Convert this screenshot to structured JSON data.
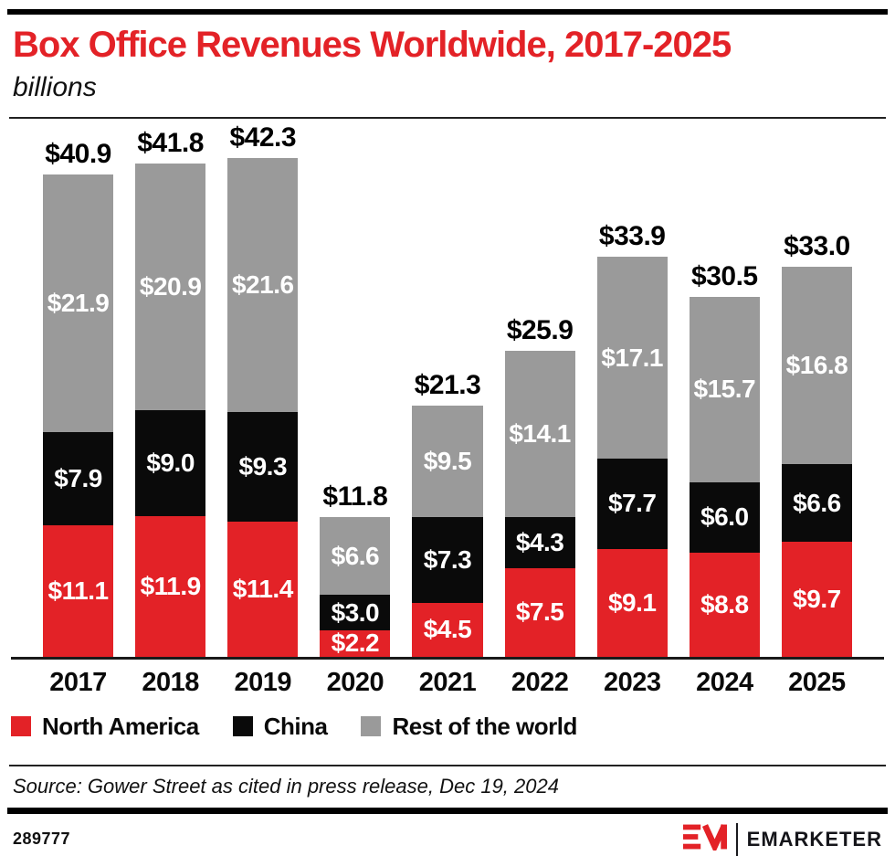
{
  "title": "Box Office Revenues Worldwide, 2017-2025",
  "subtitle": "billions",
  "chart_data": {
    "type": "bar",
    "stacked": true,
    "title": "Box Office Revenues Worldwide, 2017-2025",
    "subtitle_unit": "billions",
    "value_prefix": "$",
    "categories": [
      "2017",
      "2018",
      "2019",
      "2020",
      "2021",
      "2022",
      "2023",
      "2024",
      "2025"
    ],
    "series": [
      {
        "name": "North America",
        "color": "#e32227",
        "values": [
          11.1,
          11.9,
          11.4,
          2.2,
          4.5,
          7.5,
          9.1,
          8.8,
          9.7
        ]
      },
      {
        "name": "China",
        "color": "#0a0a0a",
        "values": [
          7.9,
          9.0,
          9.3,
          3.0,
          7.3,
          4.3,
          7.7,
          6.0,
          6.6
        ]
      },
      {
        "name": "Rest of the world",
        "color": "#9a9a9a",
        "values": [
          21.9,
          20.9,
          21.6,
          6.6,
          9.5,
          14.1,
          17.1,
          15.7,
          16.8
        ]
      }
    ],
    "totals": [
      40.9,
      41.8,
      42.3,
      11.8,
      21.3,
      25.9,
      33.9,
      30.5,
      33.0
    ],
    "axis_range": [
      0,
      42.3
    ],
    "grid": false,
    "legend_position": "bottom"
  },
  "source": "Source: Gower Street as cited in press release, Dec 19, 2024",
  "footer": {
    "chart_id": "289777",
    "brand": "EMARKETER",
    "logo_monogram": "EM",
    "brand_red": "#e32227"
  }
}
